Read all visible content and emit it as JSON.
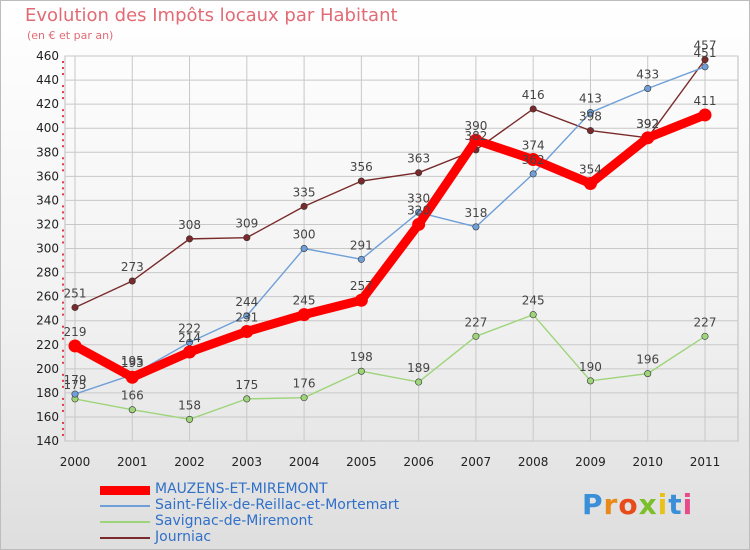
{
  "chart_data": {
    "type": "line",
    "title": "Evolution des Impôts locaux par Habitant",
    "subtitle": "(en € et par an)",
    "x": [
      "2000",
      "2001",
      "2002",
      "2003",
      "2004",
      "2005",
      "2006",
      "2007",
      "2008",
      "2009",
      "2010",
      "2011"
    ],
    "ylim": [
      140,
      460
    ],
    "yticks": [
      140,
      160,
      180,
      200,
      220,
      240,
      260,
      280,
      300,
      320,
      340,
      360,
      380,
      400,
      420,
      440,
      460
    ],
    "grid": true,
    "legend_position": "bottom-left",
    "series": [
      {
        "name": "MAUZENS-ET-MIREMONT",
        "color": "#ff0000",
        "values": [
          219,
          193,
          214,
          231,
          245,
          257,
          320,
          390,
          374,
          354,
          392,
          411
        ]
      },
      {
        "name": "Saint-Félix-de-Reillac-et-Mortemart",
        "color": "#6f9fd8",
        "values": [
          179,
          195,
          222,
          244,
          300,
          291,
          330,
          318,
          362,
          413,
          433,
          451
        ]
      },
      {
        "name": "Savignac-de-Miremont",
        "color": "#9ed47a",
        "values": [
          175,
          166,
          158,
          175,
          176,
          198,
          189,
          227,
          245,
          190,
          196,
          227
        ]
      },
      {
        "name": "Journiac",
        "color": "#7a2a2a",
        "values": [
          251,
          273,
          308,
          309,
          335,
          356,
          363,
          382,
          416,
          398,
          392,
          457
        ]
      }
    ]
  },
  "logo": {
    "letters": [
      "P",
      "r",
      "o",
      "x",
      "i",
      "t",
      "i"
    ],
    "colors": [
      "#3a8fd8",
      "#e88a1a",
      "#e84a1a",
      "#7bbf2a",
      "#e8c21a",
      "#3a8fd8",
      "#e84a8a"
    ]
  }
}
